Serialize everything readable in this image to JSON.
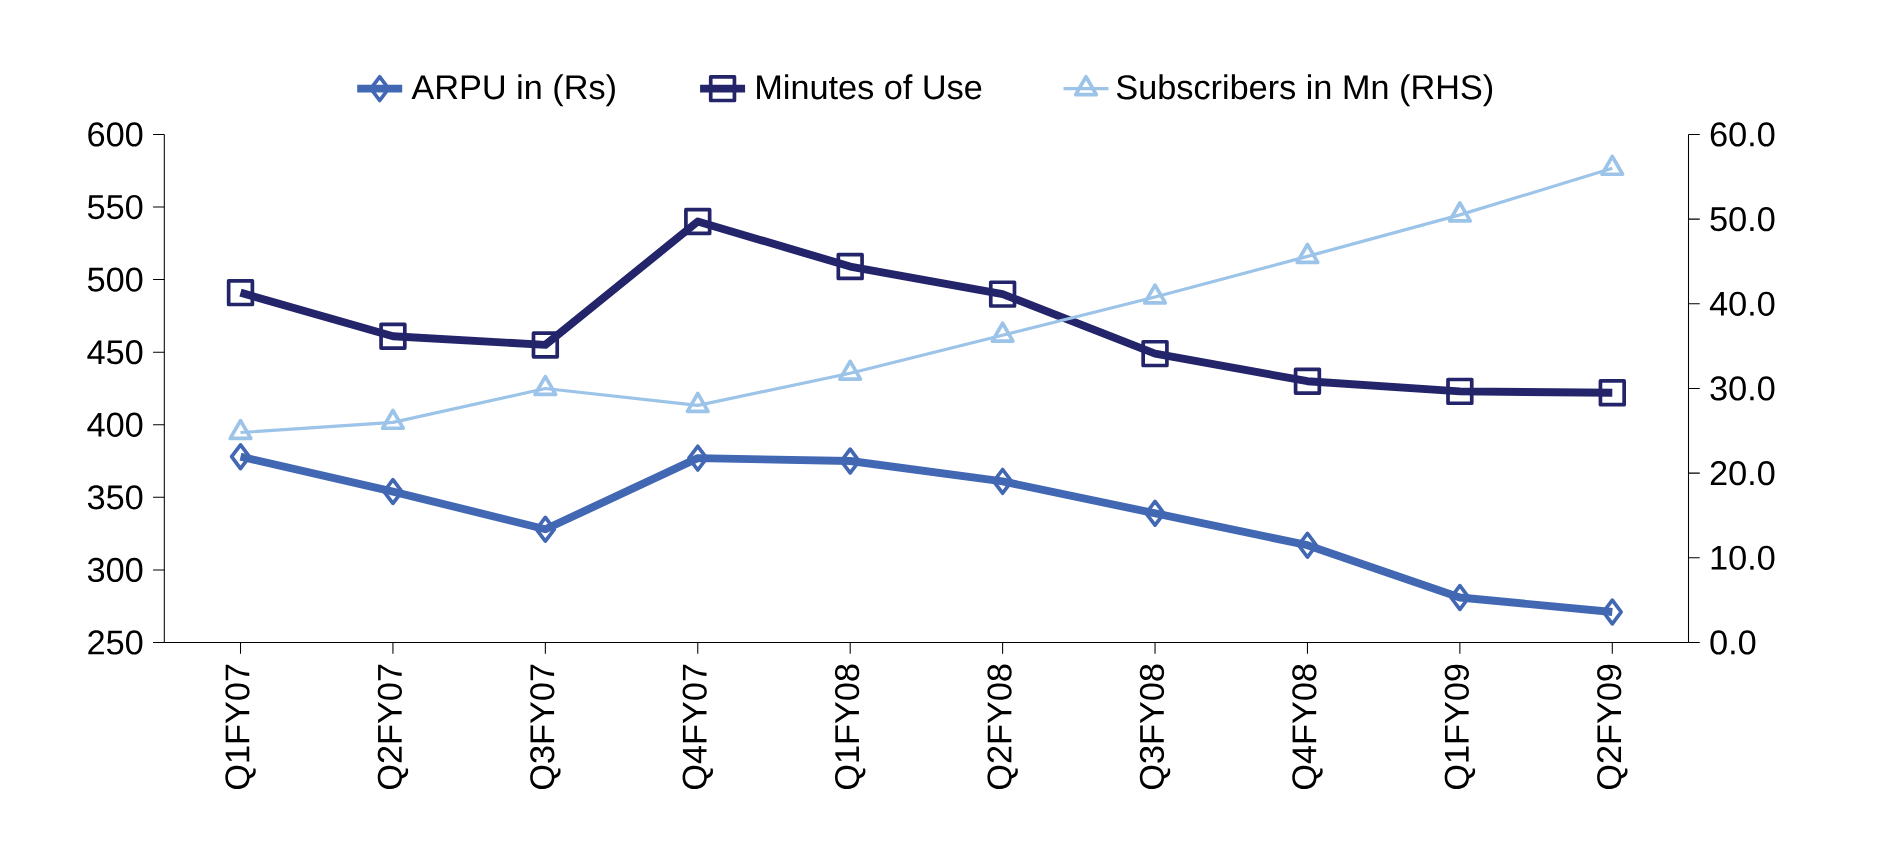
{
  "chart_data": {
    "type": "line",
    "categories": [
      "Q1FY07",
      "Q2FY07",
      "Q3FY07",
      "Q4FY07",
      "Q1FY08",
      "Q2FY08",
      "Q3FY08",
      "Q4FY08",
      "Q1FY09",
      "Q2FY09"
    ],
    "series": [
      {
        "name": "ARPU in (Rs)",
        "color": "#4268b4",
        "marker": "diamond",
        "values": [
          378,
          354,
          328,
          377,
          375,
          361,
          339,
          317,
          281,
          271
        ]
      },
      {
        "name": "Minutes of Use",
        "color": "#232469",
        "marker": "square",
        "values": [
          491,
          461,
          455,
          540,
          509,
          490,
          449,
          430,
          423,
          422
        ]
      },
      {
        "name": "Subscribers in Mn (RHS)",
        "color": "#9cc3e8",
        "marker": "triangle",
        "axis": "y2",
        "values": [
          24.8,
          26.0,
          30.0,
          28.0,
          31.8,
          36.3,
          40.8,
          45.6,
          50.5,
          56.0
        ]
      }
    ],
    "ylim": [
      250,
      600
    ],
    "yticks": [
      250,
      300,
      350,
      400,
      450,
      500,
      550,
      600
    ],
    "y2lim": [
      0,
      60
    ],
    "y2ticks": [
      {
        "value": 0,
        "label": "0.0"
      },
      {
        "value": 10,
        "label": "10.0"
      },
      {
        "value": 20,
        "label": "20.0"
      },
      {
        "value": 30,
        "label": "30.0"
      },
      {
        "value": 40,
        "label": "40.0"
      },
      {
        "value": 50,
        "label": "50.0"
      },
      {
        "value": 60,
        "label": "60.0"
      }
    ],
    "legend": "top",
    "grid": false
  }
}
